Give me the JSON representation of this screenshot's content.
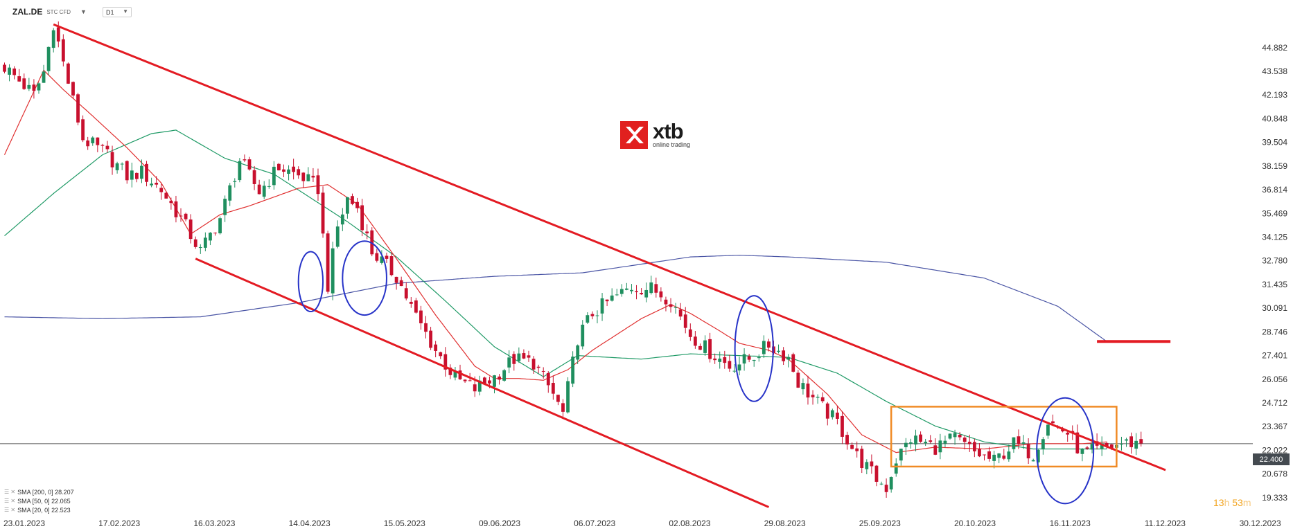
{
  "header": {
    "symbol": "ZAL.DE",
    "symbol_type": "STC CFD",
    "timeframe": "D1"
  },
  "logo": {
    "brand": "xtb",
    "tagline": "online trading"
  },
  "indicators": [
    {
      "label": "SMA [200, 0] 28.207",
      "color": "#4a55a5"
    },
    {
      "label": "SMA [50, 0] 22.065",
      "color": "#1f9a66"
    },
    {
      "label": "SMA [20, 0] 22.523",
      "color": "#e03030"
    }
  ],
  "current_price": "22.400",
  "countdown": {
    "hours": "13",
    "h_unit": "h",
    "minutes": "53",
    "m_unit": "m"
  },
  "chart_data": {
    "type": "candlestick",
    "y_ticks": [
      "44.882",
      "43.538",
      "42.193",
      "40.848",
      "39.504",
      "38.159",
      "36.814",
      "35.469",
      "34.125",
      "32.780",
      "31.435",
      "30.091",
      "28.746",
      "27.401",
      "26.056",
      "24.712",
      "23.367",
      "22.022",
      "20.678",
      "19.333"
    ],
    "ylim": [
      18.7,
      46.8
    ],
    "x_ticks": [
      "23.01.2023",
      "17.02.2023",
      "16.03.2023",
      "14.04.2023",
      "15.05.2023",
      "09.06.2023",
      "06.07.2023",
      "02.08.2023",
      "29.08.2023",
      "25.09.2023",
      "20.10.2023",
      "16.11.2023",
      "11.12.2023",
      "30.12.2023"
    ],
    "candle_count": 233,
    "current_price_line": 22.4,
    "candles_anchor": [
      [
        0,
        43.8
      ],
      [
        6,
        42.2
      ],
      [
        8,
        43.5
      ],
      [
        10,
        46.3
      ],
      [
        12,
        44.0
      ],
      [
        16,
        39.7
      ],
      [
        21,
        38.8
      ],
      [
        25,
        37.6
      ],
      [
        28,
        37.8
      ],
      [
        32,
        36.8
      ],
      [
        36,
        35.2
      ],
      [
        40,
        33.3
      ],
      [
        44,
        35.2
      ],
      [
        48,
        38.5
      ],
      [
        52,
        36.7
      ],
      [
        56,
        38.1
      ],
      [
        61,
        37.5
      ],
      [
        64,
        36.9
      ],
      [
        66,
        31.4
      ],
      [
        68,
        34.7
      ],
      [
        70,
        36.3
      ],
      [
        72,
        35.8
      ],
      [
        75,
        33.3
      ],
      [
        80,
        31.9
      ],
      [
        84,
        29.6
      ],
      [
        88,
        27.7
      ],
      [
        92,
        26.1
      ],
      [
        96,
        25.5
      ],
      [
        100,
        26.2
      ],
      [
        104,
        27.2
      ],
      [
        108,
        27.0
      ],
      [
        112,
        25.2
      ],
      [
        114,
        24.1
      ],
      [
        117,
        28.4
      ],
      [
        120,
        29.8
      ],
      [
        124,
        30.6
      ],
      [
        128,
        31.3
      ],
      [
        132,
        31.2
      ],
      [
        136,
        30.6
      ],
      [
        140,
        28.6
      ],
      [
        144,
        27.6
      ],
      [
        148,
        26.8
      ],
      [
        152,
        27.2
      ],
      [
        156,
        28.0
      ],
      [
        160,
        27.3
      ],
      [
        162,
        25.9
      ],
      [
        166,
        24.7
      ],
      [
        170,
        23.6
      ],
      [
        174,
        21.7
      ],
      [
        178,
        20.4
      ],
      [
        180,
        19.9
      ],
      [
        182,
        21.5
      ],
      [
        185,
        22.7
      ],
      [
        190,
        22.2
      ],
      [
        194,
        22.7
      ],
      [
        198,
        21.9
      ],
      [
        202,
        21.4
      ],
      [
        206,
        22.4
      ],
      [
        210,
        21.8
      ],
      [
        213,
        23.7
      ],
      [
        217,
        23.0
      ],
      [
        220,
        21.8
      ],
      [
        224,
        22.1
      ],
      [
        228,
        22.4
      ],
      [
        232,
        22.5
      ]
    ],
    "sma200_anchor": [
      [
        0,
        29.6
      ],
      [
        20,
        29.5
      ],
      [
        40,
        29.6
      ],
      [
        60,
        30.4
      ],
      [
        80,
        31.5
      ],
      [
        100,
        31.9
      ],
      [
        118,
        32.1
      ],
      [
        140,
        33.0
      ],
      [
        150,
        33.1
      ],
      [
        160,
        33.0
      ],
      [
        180,
        32.7
      ],
      [
        200,
        31.8
      ],
      [
        215,
        30.2
      ],
      [
        225,
        28.2
      ]
    ],
    "sma50_anchor": [
      [
        0,
        34.2
      ],
      [
        10,
        36.6
      ],
      [
        20,
        38.8
      ],
      [
        30,
        40.0
      ],
      [
        35,
        40.2
      ],
      [
        45,
        38.6
      ],
      [
        55,
        37.7
      ],
      [
        70,
        35.0
      ],
      [
        80,
        33.0
      ],
      [
        90,
        30.5
      ],
      [
        100,
        27.9
      ],
      [
        110,
        26.2
      ],
      [
        117,
        27.4
      ],
      [
        130,
        27.2
      ],
      [
        140,
        27.5
      ],
      [
        150,
        27.4
      ],
      [
        160,
        27.3
      ],
      [
        170,
        26.4
      ],
      [
        180,
        24.8
      ],
      [
        190,
        23.4
      ],
      [
        200,
        22.5
      ],
      [
        210,
        22.1
      ],
      [
        225,
        22.1
      ]
    ],
    "sma20_anchor": [
      [
        0,
        38.8
      ],
      [
        8,
        43.6
      ],
      [
        12,
        42.5
      ],
      [
        18,
        41.0
      ],
      [
        25,
        39.2
      ],
      [
        32,
        37.2
      ],
      [
        38,
        34.3
      ],
      [
        44,
        35.4
      ],
      [
        50,
        35.9
      ],
      [
        56,
        36.5
      ],
      [
        60,
        36.9
      ],
      [
        66,
        37.1
      ],
      [
        72,
        36.0
      ],
      [
        80,
        32.9
      ],
      [
        88,
        29.7
      ],
      [
        96,
        26.8
      ],
      [
        100,
        26.1
      ],
      [
        105,
        26.1
      ],
      [
        110,
        26.0
      ],
      [
        115,
        26.6
      ],
      [
        120,
        27.7
      ],
      [
        130,
        29.5
      ],
      [
        136,
        30.3
      ],
      [
        140,
        29.8
      ],
      [
        146,
        28.8
      ],
      [
        150,
        28.1
      ],
      [
        156,
        27.7
      ],
      [
        160,
        27.2
      ],
      [
        168,
        25.2
      ],
      [
        175,
        22.9
      ],
      [
        182,
        21.9
      ],
      [
        190,
        22.2
      ],
      [
        200,
        22.1
      ],
      [
        210,
        22.4
      ],
      [
        220,
        22.4
      ],
      [
        225,
        22.5
      ]
    ],
    "annotations": {
      "channel_upper": [
        [
          10,
          46.2
        ],
        [
          237,
          20.9
        ]
      ],
      "channel_lower": [
        [
          39,
          32.9
        ],
        [
          156,
          18.8
        ]
      ],
      "resistance_box": {
        "i0": 181,
        "i1": 227,
        "top": 24.5,
        "bottom": 21.1
      },
      "ellipses": [
        [
          62.5,
          31.6,
          2.5,
          1.7
        ],
        [
          73.5,
          31.8,
          4.5,
          2.1
        ],
        [
          153,
          27.8,
          3.9,
          3.0
        ],
        [
          216.5,
          22.0,
          5.8,
          3.0
        ]
      ],
      "level_mark": {
        "i0": 223,
        "i1": 238,
        "value": 28.2
      }
    }
  }
}
